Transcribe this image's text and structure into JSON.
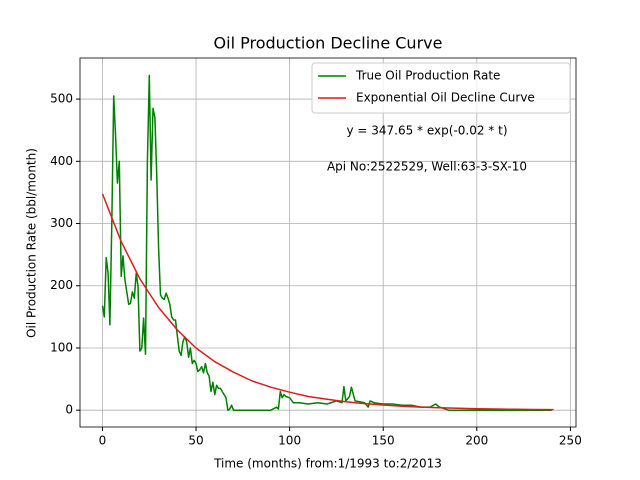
{
  "chart_data": {
    "type": "line",
    "title": "Oil Production Decline Curve",
    "xlabel": "Time (months) from:1/1993 to:2/2013",
    "ylabel": "Oil Production Rate (bbl/month)",
    "annotations": [
      "y = 347.65 * exp(-0.02 * t)",
      "Api No:2522529, Well:63-3-SX-10"
    ],
    "xlim": [
      -12,
      253
    ],
    "ylim": [
      -27,
      566
    ],
    "xticks": [
      0,
      50,
      100,
      150,
      200,
      250
    ],
    "yticks": [
      0,
      100,
      200,
      300,
      400,
      500
    ],
    "grid": true,
    "legend": "upper right",
    "series": [
      {
        "name": "True Oil Production Rate",
        "color": "#008000",
        "x": [
          0,
          1,
          2,
          3,
          4,
          5,
          6,
          7,
          8,
          9,
          10,
          11,
          12,
          13,
          14,
          15,
          16,
          17,
          18,
          19,
          20,
          21,
          22,
          23,
          24,
          25,
          26,
          27,
          28,
          29,
          30,
          31,
          32,
          33,
          34,
          35,
          36,
          37,
          38,
          39,
          40,
          41,
          42,
          43,
          44,
          45,
          46,
          47,
          48,
          49,
          50,
          51,
          52,
          53,
          54,
          55,
          56,
          57,
          58,
          59,
          60,
          61,
          62,
          63,
          64,
          65,
          66,
          67,
          68,
          69,
          70,
          80,
          90,
          93,
          94,
          95,
          96,
          97,
          98,
          100,
          102,
          105,
          110,
          115,
          120,
          125,
          128,
          129,
          130,
          132,
          133,
          135,
          140,
          142,
          143,
          145,
          150,
          155,
          160,
          165,
          170,
          175,
          178,
          180,
          185,
          190,
          200,
          210,
          220,
          230,
          240
        ],
        "values": [
          168,
          150,
          245,
          220,
          137,
          300,
          505,
          440,
          365,
          400,
          215,
          248,
          210,
          190,
          170,
          172,
          190,
          180,
          220,
          200,
          95,
          100,
          148,
          90,
          400,
          538,
          370,
          485,
          470,
          380,
          260,
          185,
          180,
          178,
          188,
          180,
          170,
          150,
          145,
          145,
          120,
          95,
          88,
          110,
          118,
          110,
          85,
          100,
          75,
          80,
          75,
          62,
          65,
          70,
          60,
          75,
          60,
          55,
          30,
          45,
          25,
          40,
          35,
          35,
          30,
          25,
          20,
          0,
          2,
          8,
          0,
          0,
          0,
          5,
          2,
          30,
          20,
          25,
          22,
          20,
          12,
          12,
          10,
          12,
          10,
          15,
          12,
          38,
          15,
          22,
          37,
          15,
          12,
          5,
          15,
          12,
          10,
          10,
          8,
          8,
          5,
          5,
          10,
          5,
          0,
          0,
          0,
          0,
          0,
          0,
          0
        ]
      },
      {
        "name": "Exponential Oil Decline Curve",
        "color": "#e31a1c",
        "x": [
          0,
          10,
          20,
          30,
          40,
          50,
          60,
          70,
          80,
          90,
          100,
          110,
          120,
          130,
          140,
          150,
          160,
          170,
          180,
          190,
          200,
          210,
          220,
          230,
          241
        ],
        "values": [
          347.65,
          271,
          211,
          165,
          129,
          100,
          78,
          61,
          47,
          37,
          29,
          22,
          17.5,
          13.6,
          10.6,
          8.3,
          6.5,
          5,
          3.9,
          3.1,
          2.4,
          1.9,
          1.5,
          1.1,
          0.9
        ]
      }
    ]
  }
}
